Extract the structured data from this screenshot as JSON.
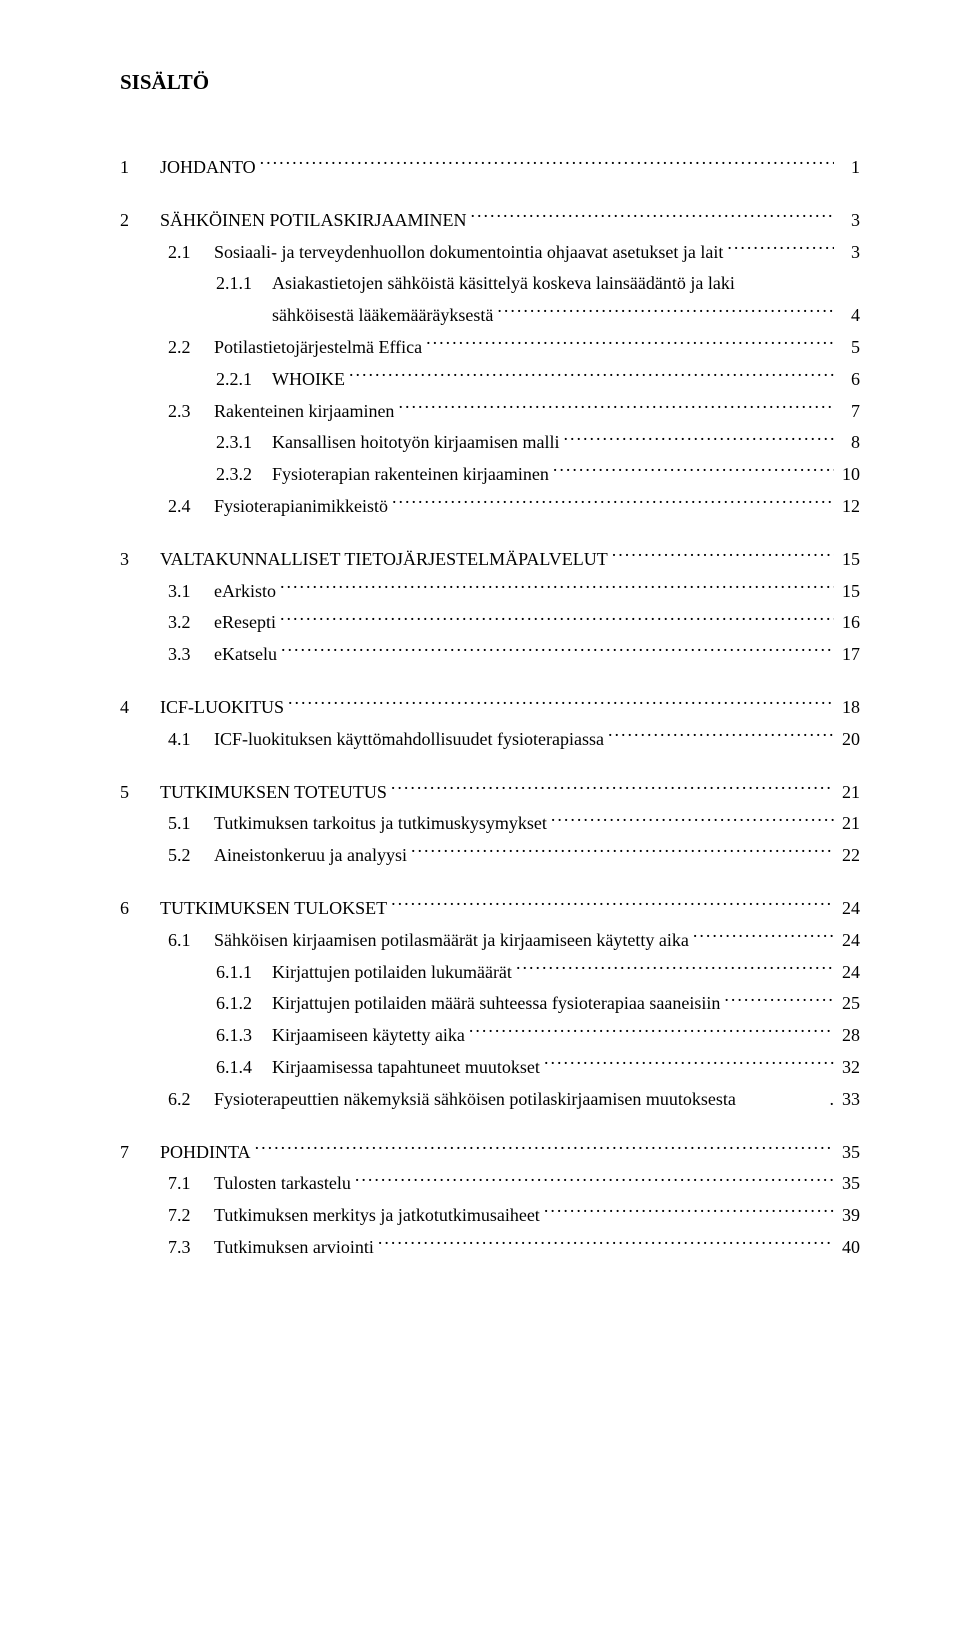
{
  "title": "SISÄLTÖ",
  "entries": [
    {
      "level": 0,
      "num": "1",
      "text": "JOHDANTO",
      "page": "1",
      "gap": true
    },
    {
      "level": 0,
      "num": "2",
      "text": "SÄHKÖINEN POTILASKIRJAAMINEN",
      "page": "3",
      "gap": true
    },
    {
      "level": 1,
      "num": "2.1",
      "text": "Sosiaali- ja terveydenhuollon dokumentointia ohjaavat asetukset ja lait",
      "page": "3",
      "gap": false
    },
    {
      "level": 2,
      "num": "2.1.1",
      "text": "Asiakastietojen sähköistä käsittelyä koskeva lainsäädäntö ja laki sähköisestä lääkemääräyksestä",
      "page": "4",
      "gap": false
    },
    {
      "level": 1,
      "num": "2.2",
      "text": "Potilastietojärjestelmä Effica",
      "page": "5",
      "gap": false
    },
    {
      "level": 2,
      "num": "2.2.1",
      "text": "WHOIKE",
      "page": "6",
      "gap": false
    },
    {
      "level": 1,
      "num": "2.3",
      "text": "Rakenteinen kirjaaminen",
      "page": "7",
      "gap": false
    },
    {
      "level": 2,
      "num": "2.3.1",
      "text": "Kansallisen hoitotyön kirjaamisen malli",
      "page": "8",
      "gap": false
    },
    {
      "level": 2,
      "num": "2.3.2",
      "text": "Fysioterapian rakenteinen kirjaaminen",
      "page": "10",
      "gap": false
    },
    {
      "level": 1,
      "num": "2.4",
      "text": "Fysioterapianimikkeistö",
      "page": "12",
      "gap": false
    },
    {
      "level": 0,
      "num": "3",
      "text": "VALTAKUNNALLISET TIETOJÄRJESTELMÄPALVELUT",
      "page": "15",
      "gap": true
    },
    {
      "level": 1,
      "num": "3.1",
      "text": "eArkisto",
      "page": "15",
      "gap": false
    },
    {
      "level": 1,
      "num": "3.2",
      "text": "eResepti",
      "page": "16",
      "gap": false
    },
    {
      "level": 1,
      "num": "3.3",
      "text": "eKatselu",
      "page": "17",
      "gap": false
    },
    {
      "level": 0,
      "num": "4",
      "text": "ICF-LUOKITUS",
      "page": "18",
      "gap": true
    },
    {
      "level": 1,
      "num": "4.1",
      "text": "ICF-luokituksen käyttömahdollisuudet fysioterapiassa",
      "page": "20",
      "gap": false
    },
    {
      "level": 0,
      "num": "5",
      "text": "TUTKIMUKSEN TOTEUTUS",
      "page": "21",
      "gap": true
    },
    {
      "level": 1,
      "num": "5.1",
      "text": "Tutkimuksen tarkoitus ja tutkimuskysymykset",
      "page": "21",
      "gap": false
    },
    {
      "level": 1,
      "num": "5.2",
      "text": "Aineistonkeruu ja analyysi",
      "page": "22",
      "gap": false
    },
    {
      "level": 0,
      "num": "6",
      "text": "TUTKIMUKSEN TULOKSET",
      "page": "24",
      "gap": true
    },
    {
      "level": 1,
      "num": "6.1",
      "text": "Sähköisen kirjaamisen potilasmäärät ja kirjaamiseen käytetty aika",
      "page": "24",
      "gap": false
    },
    {
      "level": 2,
      "num": "6.1.1",
      "text": "Kirjattujen potilaiden lukumäärät",
      "page": "24",
      "gap": false
    },
    {
      "level": 2,
      "num": "6.1.2",
      "text": "Kirjattujen potilaiden määrä suhteessa fysioterapiaa saaneisiin",
      "page": "25",
      "gap": false
    },
    {
      "level": 2,
      "num": "6.1.3",
      "text": "Kirjaamiseen käytetty aika",
      "page": "28",
      "gap": false
    },
    {
      "level": 2,
      "num": "6.1.4",
      "text": "Kirjaamisessa tapahtuneet muutokset",
      "page": "32",
      "gap": false
    },
    {
      "level": 1,
      "num": "6.2",
      "text": "Fysioterapeuttien näkemyksiä sähköisen potilaskirjaamisen muutoksesta",
      "page": "33",
      "gap": false,
      "trail_sep": "."
    },
    {
      "level": 0,
      "num": "7",
      "text": "POHDINTA",
      "page": "35",
      "gap": true
    },
    {
      "level": 1,
      "num": "7.1",
      "text": "Tulosten tarkastelu",
      "page": "35",
      "gap": false
    },
    {
      "level": 1,
      "num": "7.2",
      "text": "Tutkimuksen merkitys ja jatkotutkimusaiheet",
      "page": "39",
      "gap": false
    },
    {
      "level": 1,
      "num": "7.3",
      "text": "Tutkimuksen arviointi",
      "page": "40",
      "gap": false
    }
  ],
  "layout": {
    "num_col_width_level0": 40,
    "num_col_width_level1": 46,
    "num_col_width_level2": 56,
    "text_wrap_width": 560
  }
}
